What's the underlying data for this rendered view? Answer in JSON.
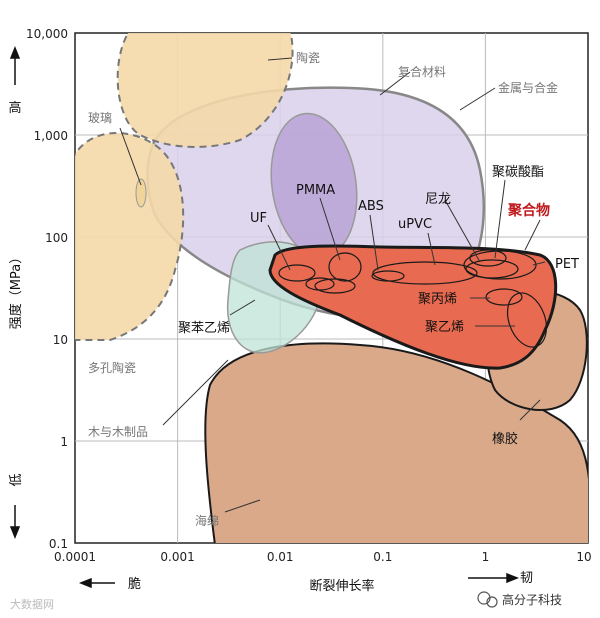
{
  "chart_data": {
    "type": "material-property-map",
    "x_axis": {
      "title": "断裂伸长率",
      "scale": "log",
      "range": [
        0.0001,
        10
      ],
      "ticks": [
        "0.0001",
        "0.001",
        "0.01",
        "0.1",
        "1",
        "10"
      ],
      "left_note": "脆",
      "right_note": "韧"
    },
    "y_axis": {
      "title": "强度（MPa）",
      "scale": "log",
      "range": [
        0.1,
        10000
      ],
      "ticks": [
        "0.1",
        "1",
        "10",
        "100",
        "1,000",
        "10,000"
      ],
      "top_note": "高",
      "bottom_note": "低"
    },
    "regions": {
      "ceramics": "陶瓷",
      "composites": "复合材料",
      "metals": "金属与合金",
      "glass": "玻璃",
      "porous_ceramics": "多孔陶瓷",
      "wood": "木与木制品",
      "foam": "海绵",
      "rubber": "橡胶",
      "polymers": "聚合物",
      "polystyrene": "聚苯乙烯",
      "polypropylene": "聚丙烯",
      "polyethylene": "聚乙烯",
      "polycarbonate": "聚碳酸酯",
      "nylon": "尼龙",
      "pmma": "PMMA",
      "abs": "ABS",
      "upvc": "uPVC",
      "uf": "UF",
      "pet": "PET"
    },
    "grid": true
  },
  "watermark_left": "大数据网",
  "watermark_right": "高分子科技"
}
